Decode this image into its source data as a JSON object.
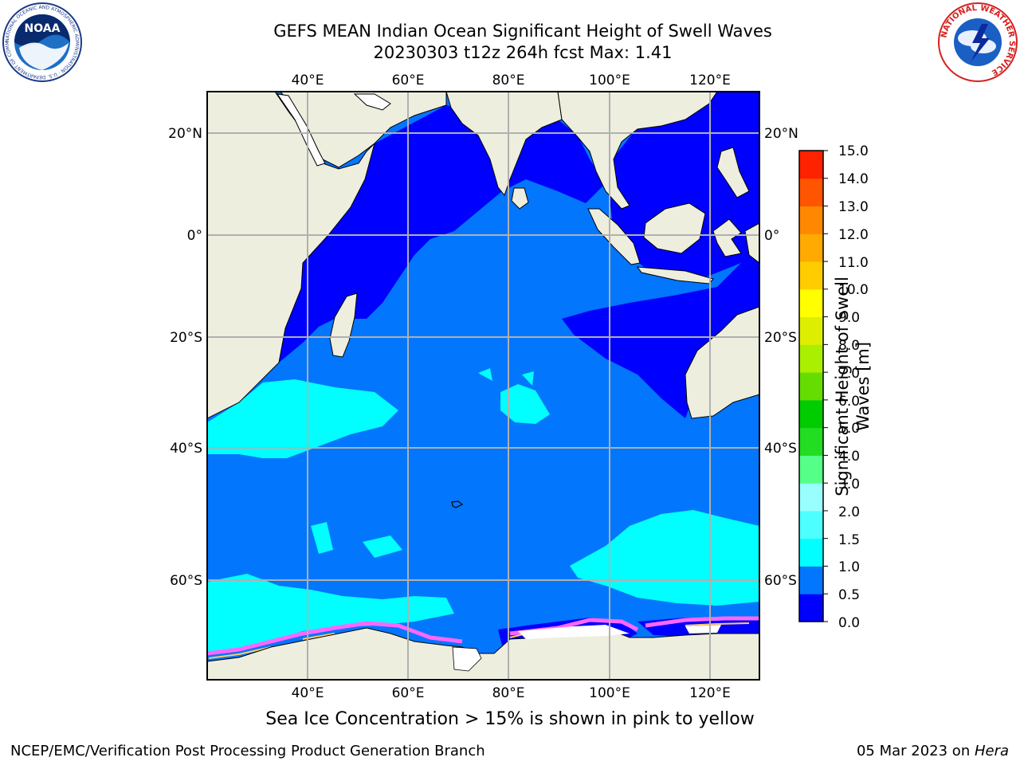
{
  "header": {
    "title_line1": "GEFS MEAN Indian Ocean Significant Height of Swell Waves",
    "title_line2": "20230303 t12z 264h fcst   Max: 1.41"
  },
  "logos": {
    "left_logo_text": "NOAA",
    "left_logo_ring_text": "NATIONAL OCEANIC AND ATMOSPHERIC ADMINISTRATION · U.S. DEPARTMENT OF COMMERCE ·",
    "right_logo_ring_text": "NATIONAL WEATHER SERVICE"
  },
  "map": {
    "lon_labels": [
      "40°E",
      "60°E",
      "80°E",
      "100°E",
      "120°E"
    ],
    "lat_labels": [
      "20°N",
      "0°",
      "20°S",
      "40°S",
      "60°S"
    ],
    "point_marker_label": "",
    "colors": {
      "land": "#eeeedf",
      "swell_0_05": "#0000fe",
      "swell_05_10": "#0276fd",
      "swell_10_15": "#00fffe",
      "sea_ice_edge": "#ff66ff",
      "sea_ice_core": "#ffcc66",
      "grid": "#b0b0b0"
    }
  },
  "colorbar": {
    "title_line1": "Significant Height of Swell",
    "title_line2": "Waves [m]",
    "labels": [
      "15.0",
      "14.0",
      "13.0",
      "12.0",
      "11.0",
      "10.0",
      "9.0",
      "8.0",
      "7.0",
      "6.0",
      "5.0",
      "4.0",
      "3.0",
      "2.0",
      "1.5",
      "1.0",
      "0.5",
      "0.0"
    ],
    "colors_bottom_to_top": [
      "#0000fe",
      "#0276fd",
      "#00fffe",
      "#4dfffe",
      "#99fffe",
      "#55ff88",
      "#22dd22",
      "#00cc00",
      "#66dd00",
      "#aaee00",
      "#ddee00",
      "#ffff00",
      "#ffcc00",
      "#ffaa00",
      "#ff8800",
      "#ff5500",
      "#ff2200"
    ]
  },
  "footer": {
    "note": "Sea Ice Concentration > 15% is shown in pink to yellow",
    "left": "NCEP/EMC/Verification Post Processing Product Generation Branch",
    "right_prefix": "05 Mar 2023 on ",
    "right_host": "Hera"
  }
}
